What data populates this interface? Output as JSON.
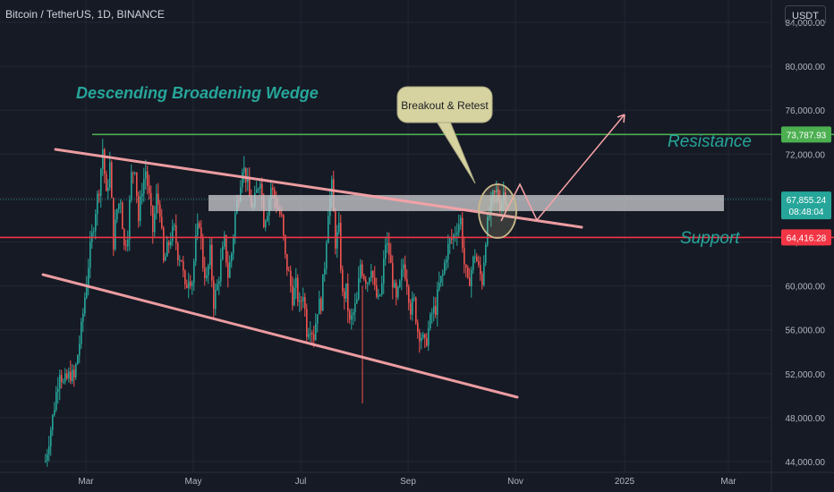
{
  "header": {
    "title": "Bitcoin / TetherUS, 1D, BINANCE",
    "currency_button": "USDT"
  },
  "annotations": {
    "pattern_title": "Descending Broadening Wedge",
    "callout": "Breakout & Retest",
    "resistance_label": "Resistance",
    "support_label": "Support"
  },
  "price_badges": {
    "resistance": "73,787.93",
    "current_price": "67,855.24",
    "countdown": "08:48:04",
    "support": "64,416.28"
  },
  "colors": {
    "background": "#161a25",
    "up_candle": "#26a69a",
    "down_candle": "#ef5350",
    "resistance": "#4caf50",
    "support": "#f23645",
    "wedge": "#f7a3a8",
    "zone": "#c8c8cc",
    "callout_bg": "#d7d3a0",
    "annotation_text": "#26a69a"
  },
  "chart_data": {
    "type": "candlestick",
    "title": "Bitcoin / TetherUS, 1D, BINANCE",
    "x_ticks": [
      "Mar",
      "May",
      "Jul",
      "Sep",
      "Nov",
      "2025",
      "Mar"
    ],
    "y_ticks": [
      "84,000.00",
      "80,000.00",
      "76,000.00",
      "72,000.00",
      "68,000.00",
      "64,000.00",
      "60,000.00",
      "56,000.00",
      "52,000.00",
      "48,000.00",
      "44,000.00"
    ],
    "ylim": [
      44000,
      86000
    ],
    "levels": {
      "resistance": 73787.93,
      "support": 64416.28,
      "last_price": 67855.24
    },
    "grid": true,
    "close_path": [
      [
        0,
        44100
      ],
      [
        4,
        48000
      ],
      [
        8,
        52500
      ],
      [
        10,
        51000
      ],
      [
        14,
        52000
      ],
      [
        16,
        51500
      ],
      [
        20,
        56000
      ],
      [
        24,
        62000
      ],
      [
        28,
        67000
      ],
      [
        30,
        69000
      ],
      [
        32,
        72500
      ],
      [
        34,
        68000
      ],
      [
        36,
        71000
      ],
      [
        38,
        64000
      ],
      [
        40,
        67000
      ],
      [
        42,
        68000
      ],
      [
        44,
        63500
      ],
      [
        46,
        65000
      ],
      [
        48,
        70000
      ],
      [
        50,
        71000
      ],
      [
        52,
        66000
      ],
      [
        54,
        69000
      ],
      [
        56,
        70500
      ],
      [
        58,
        68000
      ],
      [
        60,
        65000
      ],
      [
        62,
        68000
      ],
      [
        64,
        67000
      ],
      [
        66,
        62000
      ],
      [
        70,
        64500
      ],
      [
        72,
        65000
      ],
      [
        74,
        63000
      ],
      [
        76,
        62500
      ],
      [
        78,
        59500
      ],
      [
        80,
        61000
      ],
      [
        82,
        60500
      ],
      [
        84,
        64000
      ],
      [
        86,
        66000
      ],
      [
        88,
        62000
      ],
      [
        90,
        60500
      ],
      [
        92,
        63000
      ],
      [
        94,
        58500
      ],
      [
        96,
        60000
      ],
      [
        98,
        62000
      ],
      [
        100,
        64000
      ],
      [
        102,
        61000
      ],
      [
        104,
        63000
      ],
      [
        106,
        66500
      ],
      [
        108,
        68500
      ],
      [
        110,
        71000
      ],
      [
        112,
        70000
      ],
      [
        114,
        68000
      ],
      [
        116,
        67000
      ],
      [
        118,
        68500
      ],
      [
        120,
        70000
      ],
      [
        122,
        66000
      ],
      [
        124,
        67000
      ],
      [
        126,
        69000
      ],
      [
        128,
        68000
      ],
      [
        130,
        67000
      ],
      [
        132,
        66000
      ],
      [
        134,
        62500
      ],
      [
        136,
        61000
      ],
      [
        138,
        59000
      ],
      [
        140,
        60000
      ],
      [
        142,
        58000
      ],
      [
        144,
        59500
      ],
      [
        146,
        56000
      ],
      [
        148,
        56500
      ],
      [
        150,
        55500
      ],
      [
        152,
        58000
      ],
      [
        154,
        58500
      ],
      [
        156,
        62000
      ],
      [
        158,
        67000
      ],
      [
        160,
        69000
      ],
      [
        162,
        64000
      ],
      [
        164,
        65000
      ],
      [
        166,
        59000
      ],
      [
        168,
        59500
      ],
      [
        170,
        56500
      ],
      [
        172,
        57500
      ],
      [
        174,
        58500
      ],
      [
        176,
        62000
      ],
      [
        178,
        61000
      ],
      [
        180,
        60500
      ],
      [
        182,
        62000
      ],
      [
        184,
        59500
      ],
      [
        186,
        58500
      ],
      [
        188,
        60000
      ],
      [
        190,
        64000
      ],
      [
        192,
        63000
      ],
      [
        194,
        60500
      ],
      [
        196,
        58500
      ],
      [
        198,
        60000
      ],
      [
        200,
        62000
      ],
      [
        202,
        60500
      ],
      [
        204,
        58000
      ],
      [
        206,
        58500
      ],
      [
        208,
        56000
      ],
      [
        210,
        55500
      ],
      [
        212,
        54500
      ],
      [
        214,
        56000
      ],
      [
        216,
        57500
      ],
      [
        218,
        58000
      ],
      [
        220,
        60000
      ],
      [
        222,
        61000
      ],
      [
        224,
        63000
      ],
      [
        226,
        64000
      ],
      [
        228,
        64500
      ],
      [
        230,
        65500
      ],
      [
        232,
        66000
      ],
      [
        234,
        62000
      ],
      [
        236,
        60000
      ],
      [
        238,
        61500
      ],
      [
        240,
        63000
      ],
      [
        242,
        61500
      ],
      [
        244,
        60500
      ],
      [
        246,
        64500
      ],
      [
        248,
        66500
      ],
      [
        250,
        68000
      ],
      [
        252,
        68500
      ],
      [
        254,
        67500
      ],
      [
        256,
        68500
      ],
      [
        258,
        67800
      ]
    ]
  }
}
